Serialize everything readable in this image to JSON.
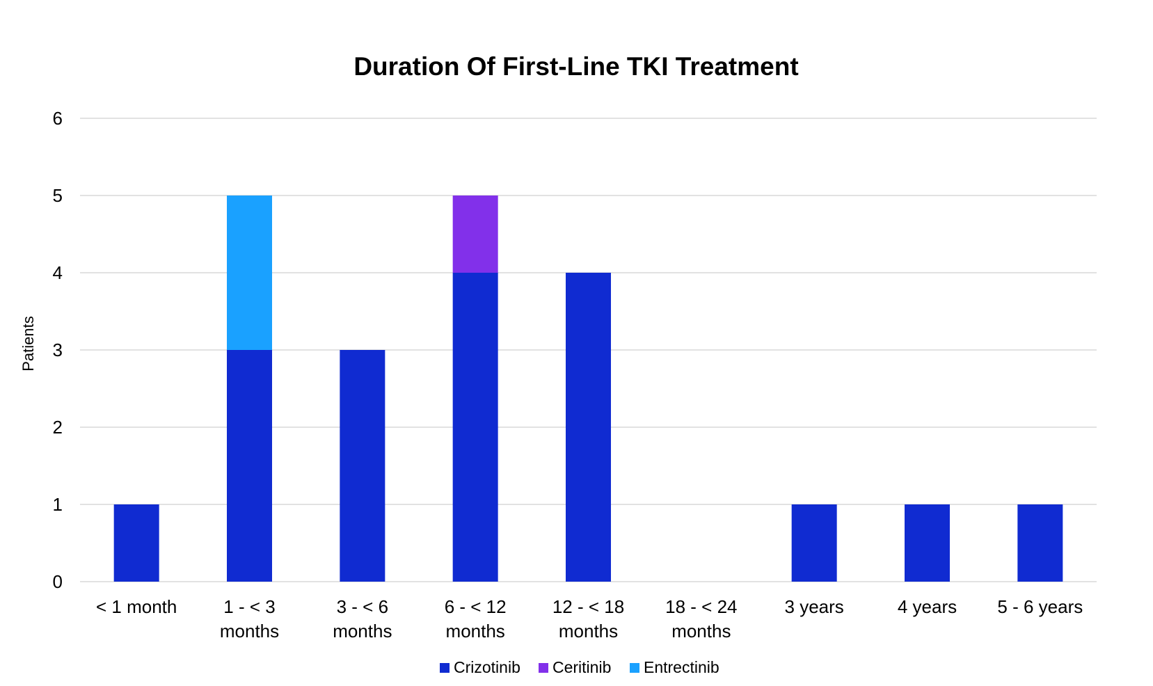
{
  "chart_data": {
    "type": "bar",
    "stacked": true,
    "title": "Duration Of First-Line TKI Treatment",
    "ylabel": "Patients",
    "xlabel": "",
    "ylim": [
      0,
      6
    ],
    "yticks": [
      "0",
      "1",
      "2",
      "3",
      "4",
      "5",
      "6"
    ],
    "grid": true,
    "legend_position": "bottom",
    "categories": [
      [
        "< 1 month"
      ],
      [
        "1 - < 3",
        "months"
      ],
      [
        "3 - < 6",
        "months"
      ],
      [
        "6 - < 12",
        "months"
      ],
      [
        "12 - < 18",
        "months"
      ],
      [
        "18 - < 24",
        "months"
      ],
      [
        "3 years"
      ],
      [
        "4 years"
      ],
      [
        "5 - 6 years"
      ]
    ],
    "series": [
      {
        "name": "Crizotinib",
        "color": "#102bd1",
        "values": [
          1,
          3,
          3,
          4,
          4,
          0,
          1,
          1,
          1
        ]
      },
      {
        "name": "Ceritinib",
        "color": "#8230ea",
        "values": [
          0,
          0,
          0,
          1,
          0,
          0,
          0,
          0,
          0
        ]
      },
      {
        "name": "Entrectinib",
        "color": "#1aa1ff",
        "values": [
          0,
          2,
          0,
          0,
          0,
          0,
          0,
          0,
          0
        ]
      }
    ]
  }
}
